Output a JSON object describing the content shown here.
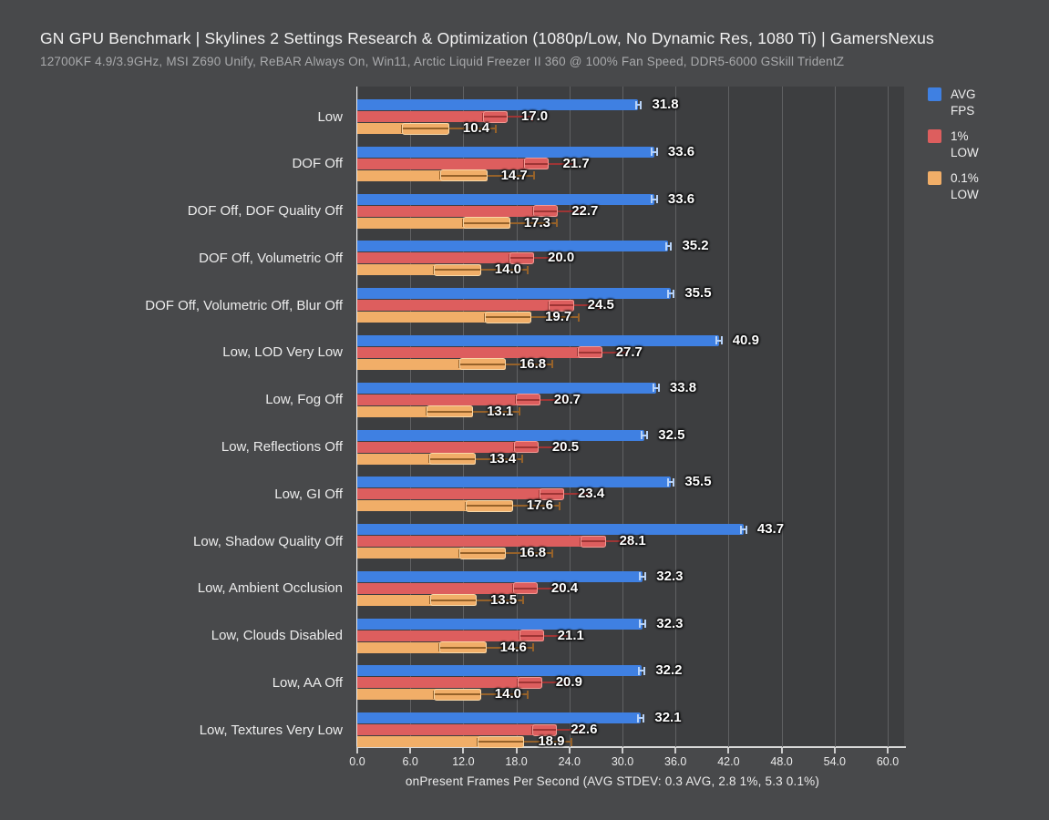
{
  "title": "GN GPU Benchmark | Skylines 2 Settings Research & Optimization (1080p/Low, No Dynamic Res, 1080 Ti) | GamersNexus",
  "subtitle": "12700KF 4.9/3.9GHz, MSI Z690 Unify, ReBAR Always On, Win11, Arctic Liquid Freezer II 360 @ 100% Fan Speed, DDR5-6000 GSkill TridentZ",
  "colors": {
    "page_background": "#48494b",
    "plot_background": "#3d3e40",
    "gridline": "#606163",
    "axis_line": "#ececec",
    "text": "#f0f0f0"
  },
  "legend": {
    "items": [
      {
        "label": "AVG FPS",
        "color": "#3f80e2"
      },
      {
        "label": "1% LOW",
        "color": "#dd5e5e"
      },
      {
        "label": "0.1% LOW",
        "color": "#f1ae68"
      }
    ]
  },
  "chart_data": {
    "type": "bar",
    "orientation": "horizontal",
    "title": "GN GPU Benchmark | Skylines 2 Settings Research & Optimization (1080p/Low, No Dynamic Res, 1080 Ti) | GamersNexus",
    "subtitle": "12700KF 4.9/3.9GHz, MSI Z690 Unify, ReBAR Always On, Win11, Arctic Liquid Freezer II 360 @ 100% Fan Speed, DDR5-6000 GSkill TridentZ",
    "xlabel": "onPresent Frames Per Second (AVG STDEV: 0.3 AVG, 2.8 1%, 5.3 0.1%)",
    "xticks": [
      "0.0",
      "6.0",
      "12.0",
      "18.0",
      "24.0",
      "30.0",
      "36.0",
      "42.0",
      "48.0",
      "54.0",
      "60.0"
    ],
    "xlim": [
      0,
      61.9
    ],
    "grid": true,
    "legend_position": "top-right",
    "categories": [
      "Low",
      "DOF Off",
      "DOF Off, DOF Quality Off",
      "DOF Off, Volumetric Off",
      "DOF Off, Volumetric Off, Blur Off",
      "Low, LOD Very Low",
      "Low, Fog Off",
      "Low, Reflections Off",
      "Low, GI Off",
      "Low, Shadow Quality Off",
      "Low, Ambient Occlusion",
      "Low, Clouds Disabled",
      "Low, AA Off",
      "Low, Textures Very Low"
    ],
    "series": [
      {
        "name": "AVG FPS",
        "stdev": 0.3,
        "color": "#3f80e2",
        "color_light": "#b8d3f8",
        "color_dark": "#b8d3f8",
        "values": [
          31.8,
          33.6,
          33.6,
          35.2,
          35.5,
          40.9,
          33.8,
          32.5,
          35.5,
          43.7,
          32.3,
          32.3,
          32.2,
          32.1
        ]
      },
      {
        "name": "1% LOW",
        "stdev": 2.8,
        "color": "#dd5e5e",
        "color_light": "#f29a94",
        "color_dark": "#9e3535",
        "values": [
          17.0,
          21.7,
          22.7,
          20.0,
          24.5,
          27.7,
          20.7,
          20.5,
          23.4,
          28.1,
          20.4,
          21.1,
          20.9,
          22.6
        ]
      },
      {
        "name": "0.1% LOW",
        "stdev": 5.3,
        "color": "#f1ae68",
        "color_light": "#f8d8a8",
        "color_dark": "#96622a",
        "values": [
          10.4,
          14.7,
          17.3,
          14.0,
          19.7,
          16.8,
          13.1,
          13.4,
          17.6,
          16.8,
          13.5,
          14.6,
          14.0,
          18.9
        ]
      }
    ]
  }
}
